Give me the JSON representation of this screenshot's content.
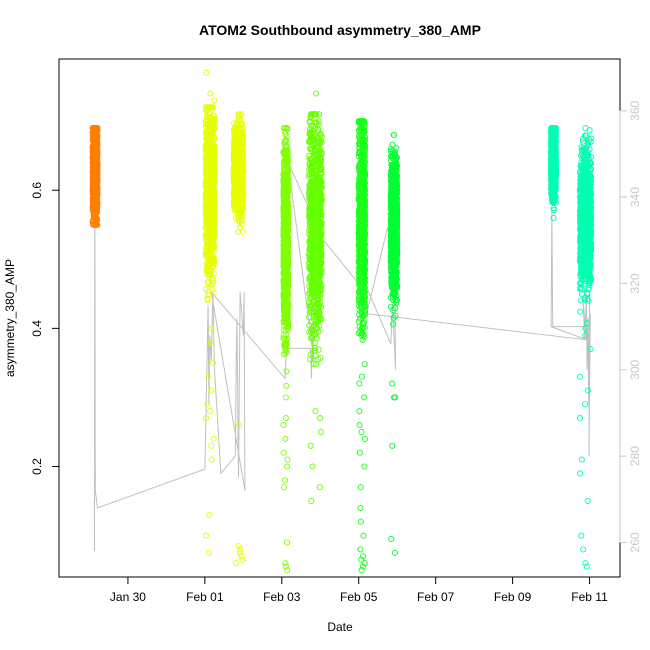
{
  "chart_data": {
    "type": "scatter",
    "title": "ATOM2 Southbound asymmetry_380_AMP",
    "xlabel": "Date",
    "ylabel": "asymmetry_380_AMP",
    "x_tick_labels": [
      "Jan 30",
      "Feb 01",
      "Feb 03",
      "Feb 05",
      "Feb 07",
      "Feb 09",
      "Feb 11"
    ],
    "x_tick_dates": [
      "2019-01-30",
      "2019-02-01",
      "2019-02-03",
      "2019-02-05",
      "2019-02-07",
      "2019-02-09",
      "2019-02-11"
    ],
    "xlim": [
      "2019-01-28T05:00",
      "2019-02-11T19:00"
    ],
    "ylim": [
      0.04,
      0.79
    ],
    "y_ticks": [
      0.2,
      0.4,
      0.6
    ],
    "y_right_lim": [
      252,
      372
    ],
    "y_right_ticks": [
      260,
      280,
      300,
      320,
      340,
      360
    ],
    "point_style": "open-circle",
    "line_color": "#c0c0c0",
    "right_axis_color": "#c8c8c8",
    "grid": false,
    "legend": "none",
    "series": [
      {
        "color": "#ff7f00",
        "start": "2019-01-29T02:00",
        "end": "2019-01-29T05:00",
        "center": 0.63,
        "spread": 0.035,
        "min": 0.55,
        "max": 0.69,
        "outliers": []
      },
      {
        "color": "#e6ff00",
        "start": "2019-02-01T00:30",
        "end": "2019-02-01T06:00",
        "center": 0.6,
        "spread": 0.06,
        "min": 0.28,
        "max": 0.72,
        "outliers": [
          0.77,
          0.74,
          0.73,
          0.4,
          0.38,
          0.35,
          0.33,
          0.31,
          0.29,
          0.27,
          0.24,
          0.23,
          0.21,
          0.13,
          0.1,
          0.075
        ]
      },
      {
        "color": "#e6ff00",
        "start": "2019-02-01T18:00",
        "end": "2019-02-02T00:00",
        "center": 0.63,
        "spread": 0.03,
        "min": 0.54,
        "max": 0.71,
        "outliers": [
          0.085,
          0.08,
          0.075,
          0.07,
          0.065,
          0.06,
          0.26
        ]
      },
      {
        "color": "#80ff00",
        "start": "2019-02-03T01:00",
        "end": "2019-02-03T04:00",
        "center": 0.53,
        "spread": 0.07,
        "min": 0.3,
        "max": 0.69,
        "outliers": [
          0.27,
          0.26,
          0.24,
          0.22,
          0.21,
          0.2,
          0.18,
          0.17,
          0.09,
          0.06,
          0.055,
          0.05
        ]
      },
      {
        "color": "#66ff00",
        "start": "2019-02-03T17:00",
        "end": "2019-02-04T01:00",
        "center": 0.55,
        "spread": 0.08,
        "min": 0.28,
        "max": 0.71,
        "outliers": [
          0.74,
          0.27,
          0.25,
          0.23,
          0.2,
          0.17,
          0.15
        ]
      },
      {
        "color": "#1aff1a",
        "start": "2019-02-05T00:00",
        "end": "2019-02-05T04:00",
        "center": 0.56,
        "spread": 0.07,
        "min": 0.33,
        "max": 0.7,
        "outliers": [
          0.32,
          0.3,
          0.28,
          0.26,
          0.25,
          0.24,
          0.22,
          0.2,
          0.17,
          0.14,
          0.12,
          0.1,
          0.08,
          0.07,
          0.065,
          0.06,
          0.055,
          0.05
        ]
      },
      {
        "color": "#00ff33",
        "start": "2019-02-05T20:00",
        "end": "2019-02-06T00:00",
        "center": 0.55,
        "spread": 0.05,
        "min": 0.3,
        "max": 0.68,
        "outliers": [
          0.32,
          0.3,
          0.23,
          0.095,
          0.075
        ]
      },
      {
        "color": "#00ffb3",
        "start": "2019-02-10T00:00",
        "end": "2019-02-10T03:00",
        "center": 0.64,
        "spread": 0.025,
        "min": 0.56,
        "max": 0.69,
        "outliers": []
      },
      {
        "color": "#00ffb3",
        "start": "2019-02-10T18:00",
        "end": "2019-02-11T01:00",
        "center": 0.56,
        "spread": 0.05,
        "min": 0.4,
        "max": 0.69,
        "outliers": [
          0.39,
          0.37,
          0.33,
          0.31,
          0.29,
          0.27,
          0.21,
          0.19,
          0.15,
          0.1,
          0.08,
          0.06,
          0.055
        ]
      }
    ],
    "line_points": [
      [
        "2019-01-29T03:00",
        270
      ],
      [
        "2019-01-29T03:10",
        258
      ],
      [
        "2019-01-29T03:20",
        350
      ],
      [
        "2019-01-29T03:40",
        272
      ],
      [
        "2019-01-29T05:00",
        268
      ],
      [
        "2019-02-01T00:00",
        277
      ],
      [
        "2019-02-01T02:00",
        315
      ],
      [
        "2019-02-01T02:30",
        292
      ],
      [
        "2019-02-01T03:00",
        308
      ],
      [
        "2019-02-01T04:00",
        302
      ],
      [
        "2019-02-01T05:00",
        318
      ],
      [
        "2019-02-01T06:00",
        300
      ],
      [
        "2019-02-01T10:00",
        276
      ],
      [
        "2019-02-01T19:00",
        280
      ],
      [
        "2019-02-01T19:30",
        300
      ],
      [
        "2019-02-01T20:00",
        312
      ],
      [
        "2019-02-01T21:00",
        275
      ],
      [
        "2019-02-01T22:00",
        318
      ],
      [
        "2019-02-02T00:00",
        308
      ],
      [
        "2019-02-02T00:30",
        318
      ],
      [
        "2019-02-02T01:00",
        272
      ],
      [
        "2019-02-01T04:00",
        318
      ],
      [
        "2019-02-03T02:00",
        298
      ],
      [
        "2019-02-03T03:00",
        305
      ],
      [
        "2019-02-03T18:00",
        305
      ],
      [
        "2019-02-03T18:30",
        298
      ],
      [
        "2019-02-03T19:00",
        310
      ],
      [
        "2019-02-03T20:00",
        302
      ],
      [
        "2019-02-03T04:00",
        348
      ],
      [
        "2019-02-04T02:00",
        330
      ],
      [
        "2019-02-05T00:00",
        320
      ],
      [
        "2019-02-05T01:00",
        315
      ],
      [
        "2019-02-05T02:00",
        328
      ],
      [
        "2019-02-05T02:30",
        308
      ],
      [
        "2019-02-05T03:00",
        345
      ],
      [
        "2019-02-05T03:30",
        315
      ],
      [
        "2019-02-05T04:00",
        320
      ],
      [
        "2019-02-05T20:00",
        306
      ],
      [
        "2019-02-05T21:00",
        315
      ],
      [
        "2019-02-05T23:00",
        300
      ],
      [
        "2019-02-05T22:00",
        333
      ],
      [
        "2019-02-05T20:00",
        333
      ],
      [
        "2019-02-05T18:00",
        333
      ],
      [
        "2019-02-05T05:00",
        313
      ],
      [
        "2019-02-10T21:00",
        307
      ],
      [
        "2019-02-10T20:00",
        316
      ],
      [
        "2019-02-10T22:00",
        307
      ],
      [
        "2019-02-10T00:00",
        310
      ],
      [
        "2019-02-10T00:30",
        337
      ],
      [
        "2019-02-10T01:00",
        310
      ],
      [
        "2019-02-10T21:30",
        310
      ],
      [
        "2019-02-10T22:00",
        318
      ],
      [
        "2019-02-10T22:30",
        300
      ],
      [
        "2019-02-10T23:00",
        312
      ],
      [
        "2019-02-10T23:30",
        292
      ],
      [
        "2019-02-11T00:00",
        317
      ],
      [
        "2019-02-10T23:40",
        280
      ],
      [
        "2019-02-11T00:30",
        313
      ]
    ]
  }
}
